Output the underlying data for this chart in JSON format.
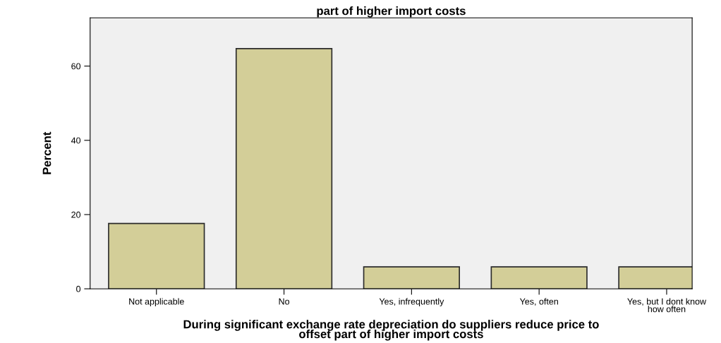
{
  "chart_data": {
    "type": "bar",
    "title": "part of higher import costs",
    "xlabel": "During significant exchange rate depreciation do suppliers reduce price to\noffset part of higher import costs",
    "ylabel": "Percent",
    "categories": [
      "Not applicable",
      "No",
      "Yes, infrequently",
      "Yes, often",
      "Yes, but I dont know\nhow often"
    ],
    "values": [
      17.6,
      64.7,
      5.9,
      5.9,
      5.9
    ],
    "color": "#d3ce98",
    "ylim": [
      0,
      73
    ],
    "yticks": [
      0,
      20,
      40,
      60
    ],
    "grid": false
  }
}
